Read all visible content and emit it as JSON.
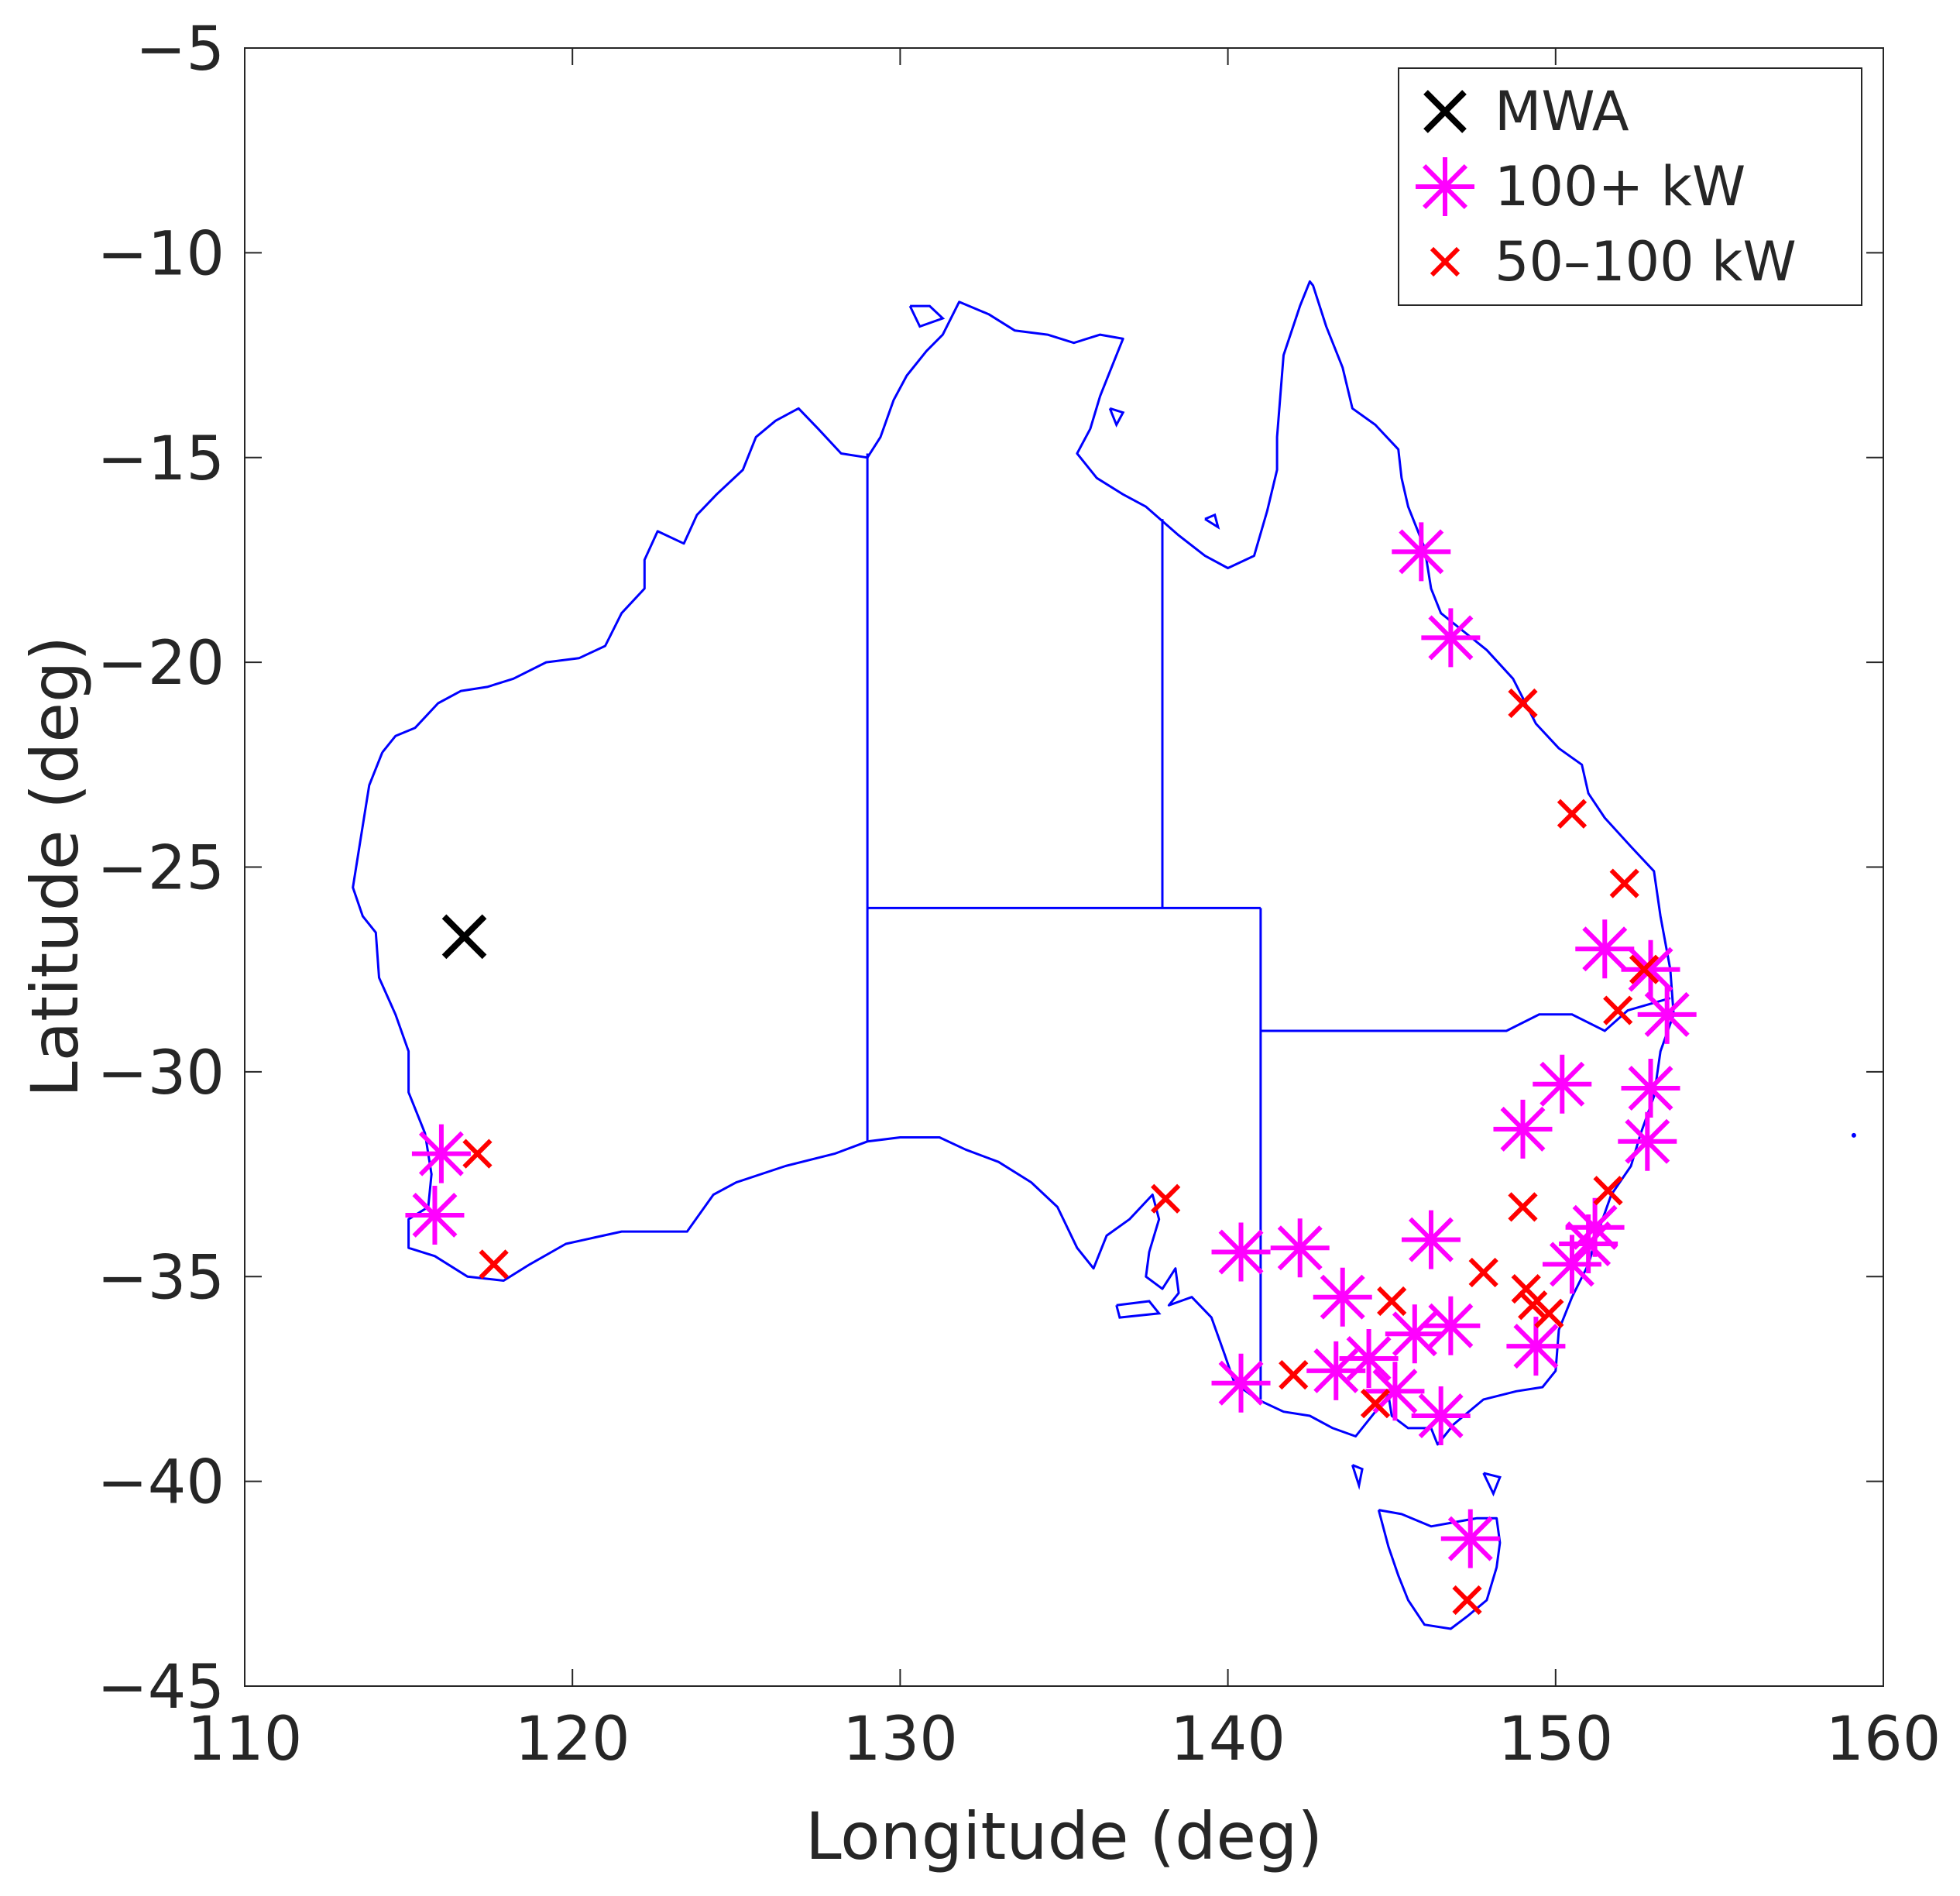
{
  "chart_data": {
    "type": "scatter",
    "title": "",
    "xlabel": "Longitude (deg)",
    "ylabel": "Latitude (deg)",
    "xlim": [
      110,
      160
    ],
    "ylim": [
      -45,
      -5
    ],
    "xticks": [
      110,
      120,
      130,
      140,
      150,
      160
    ],
    "yticks": [
      -5,
      -10,
      -15,
      -20,
      -25,
      -30,
      -35,
      -40,
      -45
    ],
    "grid": false,
    "legend_position": "top-right",
    "background_map": "Australia coastline and state borders",
    "colors": {
      "map": "#0000ff",
      "mwa": "#000000",
      "high_power": "#ff00ff",
      "mid_power": "#ff0000",
      "axes": "#262626"
    },
    "series": [
      {
        "name": "MWA",
        "marker": "x",
        "color": "#000000",
        "points": [
          [
            116.7,
            -26.7
          ]
        ]
      },
      {
        "name": "100+ kW",
        "marker": "asterisk",
        "color": "#ff00ff",
        "points": [
          [
            145.9,
            -17.3
          ],
          [
            146.8,
            -19.4
          ],
          [
            116.0,
            -32.0
          ],
          [
            115.8,
            -33.5
          ],
          [
            151.5,
            -27.0
          ],
          [
            152.9,
            -27.5
          ],
          [
            153.4,
            -28.6
          ],
          [
            152.9,
            -30.4
          ],
          [
            150.2,
            -30.3
          ],
          [
            149.0,
            -31.4
          ],
          [
            152.8,
            -31.7
          ],
          [
            151.2,
            -33.8
          ],
          [
            151.0,
            -34.2
          ],
          [
            150.5,
            -34.7
          ],
          [
            146.2,
            -34.1
          ],
          [
            140.4,
            -34.4
          ],
          [
            142.2,
            -34.3
          ],
          [
            143.5,
            -35.5
          ],
          [
            145.7,
            -36.4
          ],
          [
            146.8,
            -36.2
          ],
          [
            149.4,
            -36.7
          ],
          [
            140.4,
            -37.6
          ],
          [
            143.3,
            -37.3
          ],
          [
            144.3,
            -37.0
          ],
          [
            145.1,
            -37.8
          ],
          [
            146.5,
            -38.4
          ],
          [
            147.4,
            -41.4
          ]
        ]
      },
      {
        "name": "50–100 kW",
        "marker": "x",
        "color": "#ff0000",
        "points": [
          [
            149.0,
            -21.0
          ],
          [
            150.5,
            -23.7
          ],
          [
            152.1,
            -25.4
          ],
          [
            152.7,
            -27.5
          ],
          [
            151.9,
            -28.5
          ],
          [
            117.1,
            -32.0
          ],
          [
            117.6,
            -34.7
          ],
          [
            138.1,
            -33.1
          ],
          [
            151.6,
            -32.9
          ],
          [
            149.0,
            -33.3
          ],
          [
            147.8,
            -34.9
          ],
          [
            149.1,
            -35.3
          ],
          [
            149.3,
            -35.7
          ],
          [
            149.8,
            -35.9
          ],
          [
            145.0,
            -35.6
          ],
          [
            142.0,
            -37.4
          ],
          [
            144.5,
            -38.1
          ],
          [
            147.3,
            -42.9
          ]
        ]
      }
    ]
  }
}
